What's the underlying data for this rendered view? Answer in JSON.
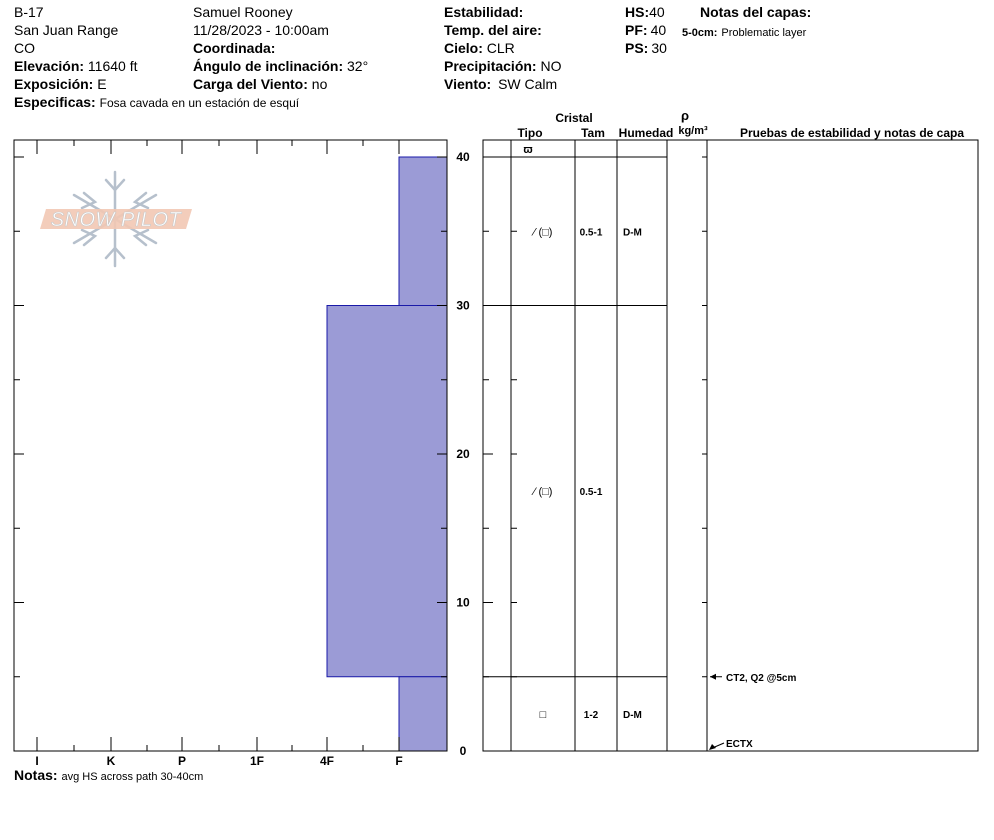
{
  "header": {
    "site": "B-17",
    "range": "San Juan Range",
    "state": "CO",
    "elevation_label": "Elevación:",
    "elevation": "11640 ft",
    "aspect_label": "Exposición:",
    "aspect": "E",
    "specifics_label": "Especificas:",
    "specifics": "Fosa cavada en un estación de esquí",
    "observer": "Samuel  Rooney",
    "datetime": "11/28/2023 - 10:00am",
    "coord_label": "Coordinada:",
    "slope_label": "Ángulo de inclinación:",
    "slope": "32°",
    "wind_load_label": "Carga del Viento:",
    "wind_load": "no",
    "stability_label": "Estabilidad:",
    "air_temp_label": "Temp. del aire:",
    "sky_label": "Cielo:",
    "sky": "CLR",
    "precip_label": "Precipitación:",
    "precip": "NO",
    "wind_label": "Viento:",
    "wind": "SW Calm",
    "hs_label": "HS:",
    "hs": "40",
    "pf_label": "PF:",
    "pf": "40",
    "ps_label": "PS:",
    "ps": "30",
    "layer_notes_title": "Notas del capas:",
    "layer_note_depth": "5-0cm:",
    "layer_note_text": "Problematic layer"
  },
  "logo": {
    "text": "SNOW PILOT"
  },
  "table_headers": {
    "cristal": "Cristal",
    "tipo": "Tipo",
    "tam": "Tam",
    "humedad": "Humedad",
    "rho": "ρ",
    "density_unit": "kg/m³",
    "tests": "Pruebas de estabilidad y notas de capa"
  },
  "notes": {
    "label": "Notas:",
    "text": "avg HS across path 30-40cm"
  },
  "colors": {
    "hardness_fill": "#9b9bd6",
    "hardness_stroke": "#1a1aa8"
  },
  "chart_data": {
    "type": "snow_profile",
    "depth_axis": {
      "unit": "cm",
      "range": [
        0,
        40
      ],
      "ticks": [
        0,
        10,
        20,
        30,
        40
      ]
    },
    "hardness_axis": {
      "ticks": [
        "I",
        "K",
        "P",
        "1F",
        "4F",
        "F"
      ]
    },
    "hardness_layers": [
      {
        "top": 40,
        "bottom": 30,
        "hardness": "F"
      },
      {
        "top": 30,
        "bottom": 5,
        "hardness": "4F"
      },
      {
        "top": 5,
        "bottom": 0,
        "hardness": "F"
      }
    ],
    "surface_symbol": "ϖ",
    "layer_boundaries": [
      40,
      30,
      5
    ],
    "layers": [
      {
        "depth": 35,
        "tipo": "⁄ (□)",
        "tam": "0.5-1",
        "humedad": "D-M"
      },
      {
        "depth": 17.5,
        "tipo": "⁄ (□)",
        "tam": "0.5-1",
        "humedad": ""
      },
      {
        "depth": 2.5,
        "tipo": "□",
        "tam": "1-2",
        "humedad": "D-M"
      }
    ],
    "tests": [
      {
        "depth": 5,
        "label": "CT2, Q2 @5cm"
      },
      {
        "depth": 0.5,
        "label": "ECTX"
      }
    ]
  }
}
